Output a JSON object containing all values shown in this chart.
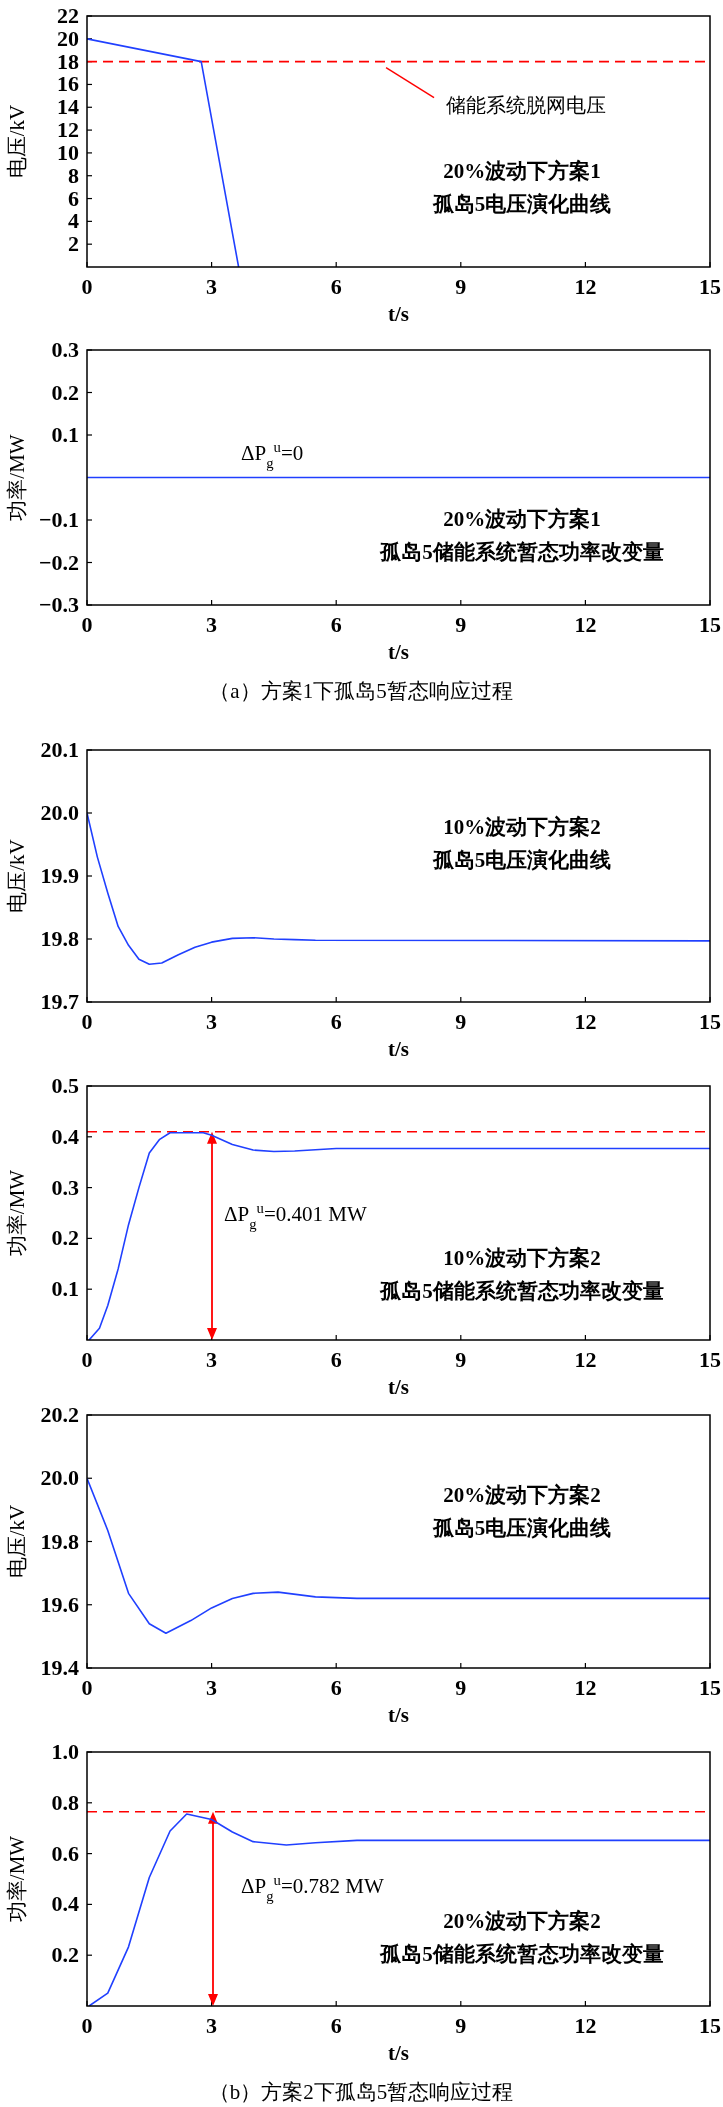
{
  "chart_data": [
    {
      "type": "line",
      "title": "20%波动下方案1\n孤岛5电压演化曲线",
      "xlabel": "t/s",
      "ylabel": "电压/kV",
      "xlim": [
        0,
        15
      ],
      "xticks": [
        0,
        3,
        6,
        9,
        12,
        15
      ],
      "ylim": [
        0,
        22
      ],
      "yticks": [
        2,
        4,
        6,
        8,
        10,
        12,
        14,
        16,
        18,
        20,
        22
      ],
      "series": [
        {
          "color": "#2040ff",
          "x": [
            0,
            2.75,
            3.65
          ],
          "values": [
            20,
            18,
            0
          ]
        }
      ],
      "ref_lines": [
        {
          "axis": "y",
          "value": 18,
          "label": "储能系统脱网电压",
          "color": "#ff0000",
          "line_style": "dashed"
        }
      ]
    },
    {
      "type": "line",
      "title": "20%波动下方案1\n孤岛5储能系统暂态功率改变量",
      "xlabel": "t/s",
      "ylabel": "功率/MW",
      "xlim": [
        0,
        15
      ],
      "xticks": [
        0,
        3,
        6,
        9,
        12,
        15
      ],
      "ylim": [
        -0.3,
        0.3
      ],
      "yticks": [
        {
          "value": -0.3,
          "label": "−0.3"
        },
        {
          "value": -0.2,
          "label": "−0.2"
        },
        {
          "value": -0.1,
          "label": "−0.1"
        },
        0.1,
        0.2,
        0.3
      ],
      "series": [
        {
          "color": "#2040ff",
          "x": [
            0,
            15
          ],
          "values": [
            0,
            0
          ]
        }
      ],
      "annotations": [
        "ΔP$_{g}$$^{u}$=0",
        "（a）方案1下孤岛5暂态响应过程"
      ]
    },
    {
      "type": "line",
      "title": "10%波动下方案2\n孤岛5电压演化曲线",
      "xlabel": "t/s",
      "ylabel": "电压/kV",
      "xlim": [
        0,
        15
      ],
      "xticks": [
        0,
        3,
        6,
        9,
        12,
        15
      ],
      "ylim": [
        19.7,
        20.1
      ],
      "yticks": [
        19.7,
        19.8,
        19.9,
        {
          "value": 20,
          "label": "20.0"
        },
        20.1
      ],
      "series": [
        {
          "color": "#2040ff",
          "x": [
            0,
            0.25,
            0.5,
            0.75,
            1,
            1.25,
            1.5,
            1.8,
            2.2,
            2.6,
            3,
            3.5,
            4,
            4.5,
            5,
            5.5,
            15
          ],
          "values": [
            20,
            19.93,
            19.873,
            19.82,
            19.79,
            19.768,
            19.76,
            19.762,
            19.775,
            19.787,
            19.795,
            19.801,
            19.802,
            19.8,
            19.799,
            19.798,
            19.797
          ]
        }
      ]
    },
    {
      "type": "line",
      "title": "10%波动下方案2\n孤岛5储能系统暂态功率改变量",
      "xlabel": "t/s",
      "ylabel": "功率/MW",
      "xlim": [
        0,
        15
      ],
      "xticks": [
        0,
        3,
        6,
        9,
        12,
        15
      ],
      "ylim": [
        0,
        0.5
      ],
      "yticks": [
        0.1,
        0.2,
        0.3,
        0.4,
        0.5
      ],
      "series": [
        {
          "color": "#2040ff",
          "x": [
            0.05,
            0.3,
            0.5,
            0.75,
            1,
            1.25,
            1.5,
            1.75,
            2,
            2.4,
            2.8,
            3,
            3.5,
            4,
            4.5,
            5,
            6,
            15
          ],
          "values": [
            0,
            0.023,
            0.068,
            0.14,
            0.227,
            0.3,
            0.368,
            0.395,
            0.408,
            0.408,
            0.408,
            0.403,
            0.385,
            0.374,
            0.371,
            0.372,
            0.377,
            0.377
          ]
        }
      ],
      "ref_lines": [
        {
          "axis": "y",
          "value": 0.41,
          "color": "#ff0000",
          "line_style": "dashed"
        }
      ],
      "annotations": [
        "ΔP$_{g}$$^{u}$=0.401 MW"
      ]
    },
    {
      "type": "line",
      "title": "20%波动下方案2\n孤岛5电压演化曲线",
      "xlabel": "t/s",
      "ylabel": "电压/kV",
      "xlim": [
        0,
        15
      ],
      "xticks": [
        0,
        3,
        6,
        9,
        12,
        15
      ],
      "ylim": [
        19.4,
        20.2
      ],
      "yticks": [
        19.4,
        19.6,
        19.8,
        {
          "value": 20,
          "label": "20.0"
        },
        20.2
      ],
      "series": [
        {
          "color": "#2040ff",
          "x": [
            0,
            0.5,
            1,
            1.5,
            1.9,
            2.5,
            3,
            3.5,
            4,
            4.6,
            5.5,
            6.5,
            15
          ],
          "values": [
            20,
            19.835,
            19.636,
            19.54,
            19.51,
            19.55,
            19.59,
            19.62,
            19.636,
            19.64,
            19.625,
            19.62,
            19.62
          ]
        }
      ]
    },
    {
      "type": "line",
      "title": "20%波动下方案2\n孤岛5储能系统暂态功率改变量",
      "xlabel": "t/s",
      "ylabel": "功率/MW",
      "xlim": [
        0,
        15
      ],
      "xticks": [
        0,
        3,
        6,
        9,
        12,
        15
      ],
      "ylim": [
        0,
        1
      ],
      "yticks": [
        0.2,
        0.4,
        0.6,
        0.8,
        {
          "value": 1,
          "label": "1.0"
        }
      ],
      "series": [
        {
          "color": "#2040ff",
          "x": [
            0.05,
            0.5,
            1,
            1.5,
            2,
            2.4,
            3,
            3.5,
            4,
            4.8,
            5.5,
            6.5,
            15
          ],
          "values": [
            0,
            0.051,
            0.233,
            0.506,
            0.689,
            0.756,
            0.734,
            0.685,
            0.647,
            0.634,
            0.643,
            0.652,
            0.652
          ]
        }
      ],
      "ref_lines": [
        {
          "axis": "y",
          "value": 0.765,
          "color": "#ff0000",
          "line_style": "dashed"
        }
      ],
      "annotations": [
        "ΔP$_{g}$$^{u}$=0.782 MW",
        "（b）方案2下孤岛5暂态响应过程"
      ]
    }
  ]
}
